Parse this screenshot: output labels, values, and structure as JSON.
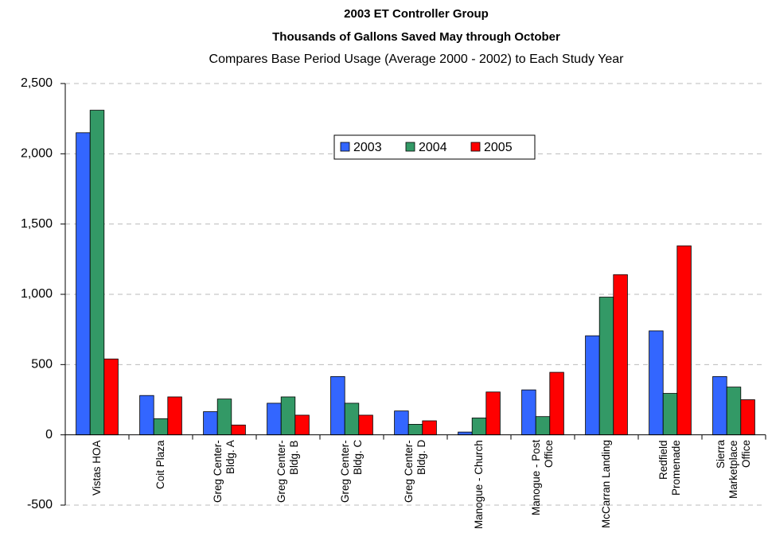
{
  "chart_data": {
    "type": "bar",
    "title": "2003 ET Controller Group",
    "subtitle": "Thousands of Gallons Saved May through October",
    "note": "Compares Base Period Usage (Average 2000 - 2002) to Each Study Year",
    "categories": [
      "Vistas HOA",
      "Coit Plaza",
      "Greg Center-\nBldg. A",
      "Greg Center-\nBldg. B",
      "Greg Center-\nBldg. C",
      "Greg Center-\nBldg. D",
      "Manogue - Church",
      "Manogue - Post\nOffice",
      "McCarran Landing",
      "Redfield\nPromenade",
      "Sierra\nMarketplace\nOffice"
    ],
    "series": [
      {
        "name": "2003",
        "color": "#3366ff",
        "values": [
          2150,
          280,
          165,
          225,
          415,
          170,
          20,
          320,
          705,
          740,
          415
        ]
      },
      {
        "name": "2004",
        "color": "#339966",
        "values": [
          2310,
          115,
          255,
          270,
          225,
          75,
          120,
          130,
          980,
          295,
          340
        ]
      },
      {
        "name": "2005",
        "color": "#ff0000",
        "values": [
          540,
          270,
          70,
          140,
          140,
          100,
          305,
          445,
          1140,
          1345,
          250
        ]
      }
    ],
    "ylim": [
      -500,
      2500
    ],
    "yticks": [
      {
        "value": 2500,
        "label": "2,500"
      },
      {
        "value": 2000,
        "label": "2,000"
      },
      {
        "value": 1500,
        "label": "1,500"
      },
      {
        "value": 1000,
        "label": "1,000"
      },
      500,
      0,
      -500
    ],
    "grid": true,
    "legend": "top"
  }
}
